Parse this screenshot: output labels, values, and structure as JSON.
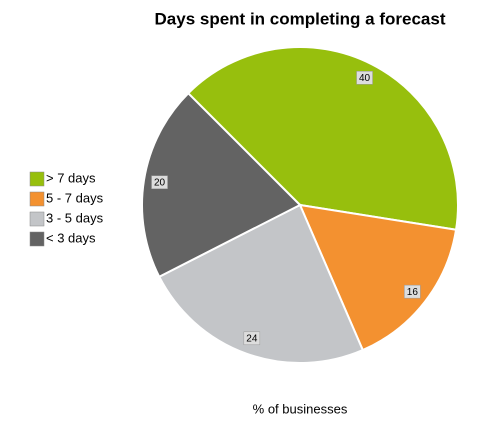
{
  "chart_data": {
    "type": "pie",
    "title": "Days spent in completing a forecast",
    "x_label": "% of businesses",
    "categories": [
      "> 7 days",
      "5 - 7 days",
      "3 - 5 days",
      "< 3 days"
    ],
    "values": [
      40,
      16,
      24,
      20
    ],
    "colors": [
      "#97bf0d",
      "#f39130",
      "#c3c5c8",
      "#636363"
    ],
    "legend": "left"
  }
}
